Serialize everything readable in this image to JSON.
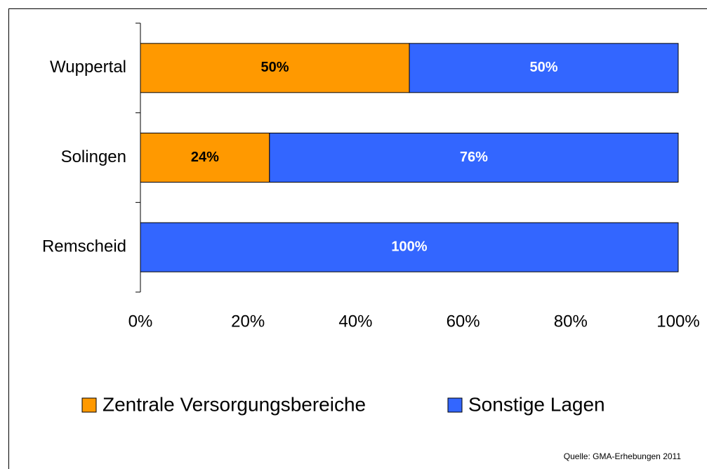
{
  "chart_data": {
    "type": "stacked_barh",
    "categories": [
      "Wuppertal",
      "Solingen",
      "Remscheid"
    ],
    "series": [
      {
        "name": "Zentrale Versorgungsbereiche",
        "color": "#ff9900",
        "label_color": "#000000",
        "values": [
          50,
          24,
          0
        ],
        "value_labels": [
          "50%",
          "24%",
          null
        ]
      },
      {
        "name": "Sonstige Lagen",
        "color": "#3366ff",
        "label_color": "#ffffff",
        "values": [
          50,
          76,
          100
        ],
        "value_labels": [
          "50%",
          "76%",
          "100%"
        ]
      }
    ],
    "xlim": [
      0,
      100
    ],
    "xticks": [
      {
        "value": 0,
        "label": "0%"
      },
      {
        "value": 20,
        "label": "20%"
      },
      {
        "value": 40,
        "label": "40%"
      },
      {
        "value": 60,
        "label": "60%"
      },
      {
        "value": 80,
        "label": "80%"
      },
      {
        "value": 100,
        "label": "100%"
      }
    ],
    "legend": "bottom",
    "source": "Quelle: GMA-Erhebungen 2011"
  }
}
